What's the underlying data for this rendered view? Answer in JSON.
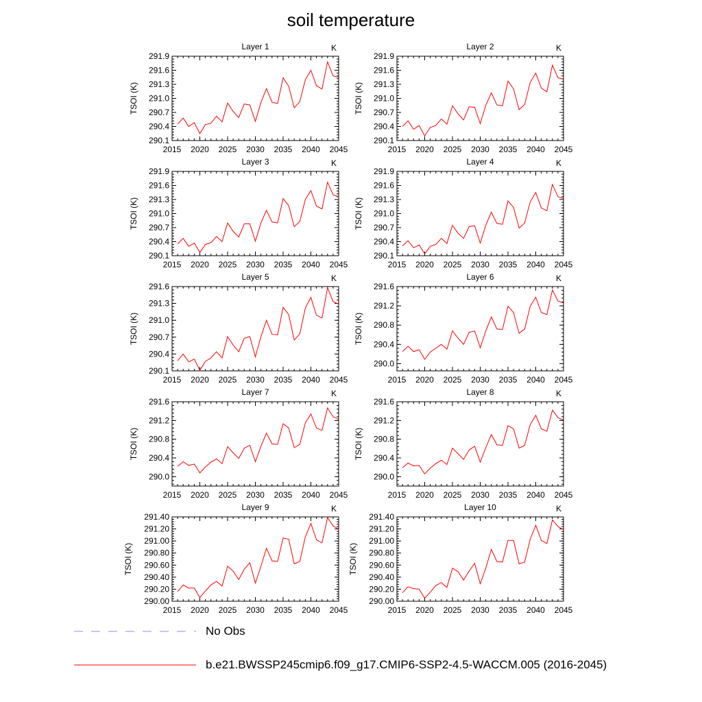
{
  "title": "soil temperature",
  "legend": {
    "obs_label": "No Obs",
    "model_label": "b.e21.BWSSP245cmip6.f09_g17.CMIP6-SSP2-4.5-WACCM.005 (2016-2045)",
    "obs_color": "#8c8cf0",
    "model_color": "#ff0000"
  },
  "chart_data": [
    {
      "type": "line",
      "title": "Layer 1",
      "units": "K",
      "ylabel": "TSOI  (K)",
      "xlim": [
        2015,
        2045
      ],
      "xticks": [
        2015,
        2020,
        2025,
        2030,
        2035,
        2040,
        2045
      ],
      "ylim": [
        290.1,
        291.9
      ],
      "yticks": [
        "290.1",
        "290.4",
        "290.7",
        "291.0",
        "291.3",
        "291.6",
        "291.9"
      ],
      "series": [
        {
          "name": "b.e21.BWSSP245cmip6.f09_g17.CMIP6-SSP2-4.5-WACCM.005",
          "x": [
            2016,
            2017,
            2018,
            2019,
            2020,
            2021,
            2022,
            2023,
            2024,
            2025,
            2026,
            2027,
            2028,
            2029,
            2030,
            2031,
            2032,
            2033,
            2034,
            2035,
            2036,
            2037,
            2038,
            2039,
            2040,
            2041,
            2042,
            2043,
            2044,
            2045
          ],
          "values": [
            290.45,
            290.58,
            290.4,
            290.48,
            290.25,
            290.44,
            290.47,
            290.62,
            290.5,
            290.9,
            290.72,
            290.59,
            290.88,
            290.86,
            290.51,
            290.91,
            291.21,
            290.92,
            290.89,
            291.44,
            291.26,
            290.8,
            290.93,
            291.4,
            291.6,
            291.27,
            291.2,
            291.78,
            291.48,
            291.45
          ]
        }
      ]
    },
    {
      "type": "line",
      "title": "Layer 2",
      "units": "K",
      "ylabel": "TSOI  (K)",
      "xlim": [
        2015,
        2045
      ],
      "xticks": [
        2015,
        2020,
        2025,
        2030,
        2035,
        2040,
        2045
      ],
      "ylim": [
        290.1,
        291.9
      ],
      "yticks": [
        "290.1",
        "290.4",
        "290.7",
        "291.0",
        "291.3",
        "291.6",
        "291.9"
      ],
      "series": [
        {
          "name": "b.e21.BWSSP245cmip6.f09_g17.CMIP6-SSP2-4.5-WACCM.005",
          "x": [
            2016,
            2017,
            2018,
            2019,
            2020,
            2021,
            2022,
            2023,
            2024,
            2025,
            2026,
            2027,
            2028,
            2029,
            2030,
            2031,
            2032,
            2033,
            2034,
            2035,
            2036,
            2037,
            2038,
            2039,
            2040,
            2041,
            2042,
            2043,
            2044,
            2045
          ],
          "values": [
            290.4,
            290.52,
            290.34,
            290.42,
            290.2,
            290.38,
            290.42,
            290.56,
            290.45,
            290.84,
            290.67,
            290.54,
            290.82,
            290.81,
            290.46,
            290.85,
            291.12,
            290.86,
            290.84,
            291.37,
            291.2,
            290.76,
            290.87,
            291.34,
            291.54,
            291.22,
            291.14,
            291.71,
            291.44,
            291.41
          ]
        }
      ]
    },
    {
      "type": "line",
      "title": "Layer 3",
      "units": "K",
      "ylabel": "TSOI  (K)",
      "xlim": [
        2015,
        2045
      ],
      "xticks": [
        2015,
        2020,
        2025,
        2030,
        2035,
        2040,
        2045
      ],
      "ylim": [
        290.1,
        291.9
      ],
      "yticks": [
        "290.1",
        "290.4",
        "290.7",
        "291.0",
        "291.3",
        "291.6",
        "291.9"
      ],
      "series": [
        {
          "name": "b.e21.BWSSP245cmip6.f09_g17.CMIP6-SSP2-4.5-WACCM.005",
          "x": [
            2016,
            2017,
            2018,
            2019,
            2020,
            2021,
            2022,
            2023,
            2024,
            2025,
            2026,
            2027,
            2028,
            2029,
            2030,
            2031,
            2032,
            2033,
            2034,
            2035,
            2036,
            2037,
            2038,
            2039,
            2040,
            2041,
            2042,
            2043,
            2044,
            2045
          ],
          "values": [
            290.35,
            290.47,
            290.3,
            290.37,
            290.17,
            290.34,
            290.38,
            290.51,
            290.4,
            290.8,
            290.62,
            290.5,
            290.78,
            290.78,
            290.41,
            290.8,
            291.07,
            290.82,
            290.8,
            291.32,
            291.17,
            290.72,
            290.83,
            291.3,
            291.49,
            291.16,
            291.1,
            291.67,
            291.4,
            291.36
          ]
        }
      ]
    },
    {
      "type": "line",
      "title": "Layer 4",
      "units": "K",
      "ylabel": "TSOI  (K)",
      "xlim": [
        2015,
        2045
      ],
      "xticks": [
        2015,
        2020,
        2025,
        2030,
        2035,
        2040,
        2045
      ],
      "ylim": [
        290.1,
        291.9
      ],
      "yticks": [
        "290.1",
        "290.4",
        "290.7",
        "291.0",
        "291.3",
        "291.6",
        "291.9"
      ],
      "series": [
        {
          "name": "b.e21.BWSSP245cmip6.f09_g17.CMIP6-SSP2-4.5-WACCM.005",
          "x": [
            2016,
            2017,
            2018,
            2019,
            2020,
            2021,
            2022,
            2023,
            2024,
            2025,
            2026,
            2027,
            2028,
            2029,
            2030,
            2031,
            2032,
            2033,
            2034,
            2035,
            2036,
            2037,
            2038,
            2039,
            2040,
            2041,
            2042,
            2043,
            2044,
            2045
          ],
          "values": [
            290.31,
            290.42,
            290.27,
            290.33,
            290.14,
            290.3,
            290.34,
            290.47,
            290.36,
            290.75,
            290.58,
            290.47,
            290.72,
            290.74,
            290.37,
            290.75,
            291.03,
            290.79,
            290.77,
            291.27,
            291.13,
            290.69,
            290.8,
            291.25,
            291.45,
            291.12,
            291.06,
            291.62,
            291.36,
            291.32
          ]
        }
      ]
    },
    {
      "type": "line",
      "title": "Layer 5",
      "units": "K",
      "ylabel": "TSOI  (K)",
      "xlim": [
        2015,
        2045
      ],
      "xticks": [
        2015,
        2020,
        2025,
        2030,
        2035,
        2040,
        2045
      ],
      "ylim": [
        290.1,
        291.6
      ],
      "yticks": [
        "290.1",
        "290.4",
        "290.7",
        "291.0",
        "291.3",
        "291.6"
      ],
      "series": [
        {
          "name": "b.e21.BWSSP245cmip6.f09_g17.CMIP6-SSP2-4.5-WACCM.005",
          "x": [
            2016,
            2017,
            2018,
            2019,
            2020,
            2021,
            2022,
            2023,
            2024,
            2025,
            2026,
            2027,
            2028,
            2029,
            2030,
            2031,
            2032,
            2033,
            2034,
            2035,
            2036,
            2037,
            2038,
            2039,
            2040,
            2041,
            2042,
            2043,
            2044,
            2045
          ],
          "values": [
            290.28,
            290.4,
            290.26,
            290.31,
            290.11,
            290.27,
            290.33,
            290.44,
            290.33,
            290.71,
            290.56,
            290.44,
            290.68,
            290.71,
            290.35,
            290.71,
            291.0,
            290.75,
            290.74,
            291.23,
            291.1,
            290.65,
            290.76,
            291.22,
            291.41,
            291.09,
            291.04,
            291.58,
            291.33,
            291.29
          ]
        }
      ]
    },
    {
      "type": "line",
      "title": "Layer 6",
      "units": "K",
      "ylabel": "TSOI  (K)",
      "xlim": [
        2015,
        2045
      ],
      "xticks": [
        2015,
        2020,
        2025,
        2030,
        2035,
        2040,
        2045
      ],
      "ylim": [
        289.85,
        291.6
      ],
      "yticks": [
        "290.0",
        "290.4",
        "290.8",
        "291.2",
        "291.6"
      ],
      "series": [
        {
          "name": "b.e21.BWSSP245cmip6.f09_g17.CMIP6-SSP2-4.5-WACCM.005",
          "x": [
            2016,
            2017,
            2018,
            2019,
            2020,
            2021,
            2022,
            2023,
            2024,
            2025,
            2026,
            2027,
            2028,
            2029,
            2030,
            2031,
            2032,
            2033,
            2034,
            2035,
            2036,
            2037,
            2038,
            2039,
            2040,
            2041,
            2042,
            2043,
            2044,
            2045
          ],
          "values": [
            290.25,
            290.36,
            290.25,
            290.29,
            290.09,
            290.24,
            290.32,
            290.4,
            290.3,
            290.68,
            290.53,
            290.4,
            290.65,
            290.68,
            290.33,
            290.68,
            290.97,
            290.72,
            290.71,
            291.19,
            291.06,
            290.63,
            290.72,
            291.19,
            291.38,
            291.06,
            291.02,
            291.53,
            291.3,
            291.26
          ]
        }
      ]
    },
    {
      "type": "line",
      "title": "Layer 7",
      "units": "K",
      "ylabel": "TSOI  (K)",
      "xlim": [
        2015,
        2045
      ],
      "xticks": [
        2015,
        2020,
        2025,
        2030,
        2035,
        2040,
        2045
      ],
      "ylim": [
        289.8,
        291.6
      ],
      "yticks": [
        "290.0",
        "290.4",
        "290.8",
        "291.2",
        "291.6"
      ],
      "series": [
        {
          "name": "b.e21.BWSSP245cmip6.f09_g17.CMIP6-SSP2-4.5-WACCM.005",
          "x": [
            2016,
            2017,
            2018,
            2019,
            2020,
            2021,
            2022,
            2023,
            2024,
            2025,
            2026,
            2027,
            2028,
            2029,
            2030,
            2031,
            2032,
            2033,
            2034,
            2035,
            2036,
            2037,
            2038,
            2039,
            2040,
            2041,
            2042,
            2043,
            2044,
            2045
          ],
          "values": [
            290.22,
            290.32,
            290.24,
            290.27,
            290.08,
            290.21,
            290.31,
            290.38,
            290.28,
            290.64,
            290.51,
            290.39,
            290.61,
            290.67,
            290.32,
            290.65,
            290.93,
            290.7,
            290.69,
            291.13,
            291.04,
            290.62,
            290.69,
            291.15,
            291.34,
            291.04,
            290.99,
            291.47,
            291.28,
            291.23
          ]
        }
      ]
    },
    {
      "type": "line",
      "title": "Layer 8",
      "units": "K",
      "ylabel": "TSOI  (K)",
      "xlim": [
        2015,
        2045
      ],
      "xticks": [
        2015,
        2020,
        2025,
        2030,
        2035,
        2040,
        2045
      ],
      "ylim": [
        289.8,
        291.6
      ],
      "yticks": [
        "290.0",
        "290.4",
        "290.8",
        "291.2",
        "291.6"
      ],
      "series": [
        {
          "name": "b.e21.BWSSP245cmip6.f09_g17.CMIP6-SSP2-4.5-WACCM.005",
          "x": [
            2016,
            2017,
            2018,
            2019,
            2020,
            2021,
            2022,
            2023,
            2024,
            2025,
            2026,
            2027,
            2028,
            2029,
            2030,
            2031,
            2032,
            2033,
            2034,
            2035,
            2036,
            2037,
            2038,
            2039,
            2040,
            2041,
            2042,
            2043,
            2044,
            2045
          ],
          "values": [
            290.19,
            290.29,
            290.23,
            290.24,
            290.06,
            290.18,
            290.28,
            290.35,
            290.26,
            290.61,
            290.49,
            290.37,
            290.57,
            290.65,
            290.31,
            290.62,
            290.9,
            290.68,
            290.67,
            291.09,
            291.02,
            290.61,
            290.67,
            291.11,
            291.31,
            291.02,
            290.97,
            291.42,
            291.26,
            291.21
          ]
        }
      ]
    },
    {
      "type": "line",
      "title": "Layer 9",
      "units": "K",
      "ylabel": "TSOI  (K)",
      "xlim": [
        2015,
        2045
      ],
      "xticks": [
        2015,
        2020,
        2025,
        2030,
        2035,
        2040,
        2045
      ],
      "ylim": [
        290.0,
        291.4
      ],
      "yticks": [
        "290.00",
        "290.20",
        "290.40",
        "290.60",
        "290.80",
        "291.00",
        "291.20",
        "291.40"
      ],
      "series": [
        {
          "name": "b.e21.BWSSP245cmip6.f09_g17.CMIP6-SSP2-4.5-WACCM.005",
          "x": [
            2016,
            2017,
            2018,
            2019,
            2020,
            2021,
            2022,
            2023,
            2024,
            2025,
            2026,
            2027,
            2028,
            2029,
            2030,
            2031,
            2032,
            2033,
            2034,
            2035,
            2036,
            2037,
            2038,
            2039,
            2040,
            2041,
            2042,
            2043,
            2044,
            2045
          ],
          "values": [
            290.16,
            290.27,
            290.22,
            290.22,
            290.06,
            290.17,
            290.27,
            290.33,
            290.25,
            290.58,
            290.5,
            290.36,
            290.53,
            290.64,
            290.3,
            290.58,
            290.88,
            290.67,
            290.66,
            291.05,
            291.03,
            290.62,
            290.66,
            291.07,
            291.29,
            291.02,
            290.97,
            291.39,
            291.25,
            291.2
          ]
        }
      ]
    },
    {
      "type": "line",
      "title": "Layer 10",
      "units": "K",
      "ylabel": "TSOI  (K)",
      "xlim": [
        2015,
        2045
      ],
      "xticks": [
        2015,
        2020,
        2025,
        2030,
        2035,
        2040,
        2045
      ],
      "ylim": [
        290.0,
        291.4
      ],
      "yticks": [
        "290.00",
        "290.20",
        "290.40",
        "290.60",
        "290.80",
        "291.00",
        "291.20",
        "291.40"
      ],
      "series": [
        {
          "name": "b.e21.BWSSP245cmip6.f09_g17.CMIP6-SSP2-4.5-WACCM.005",
          "x": [
            2016,
            2017,
            2018,
            2019,
            2020,
            2021,
            2022,
            2023,
            2024,
            2025,
            2026,
            2027,
            2028,
            2029,
            2030,
            2031,
            2032,
            2033,
            2034,
            2035,
            2036,
            2037,
            2038,
            2039,
            2040,
            2041,
            2042,
            2043,
            2044,
            2045
          ],
          "values": [
            290.14,
            290.24,
            290.21,
            290.2,
            290.05,
            290.15,
            290.26,
            290.31,
            290.23,
            290.55,
            290.49,
            290.35,
            290.5,
            290.63,
            290.29,
            290.55,
            290.86,
            290.66,
            290.65,
            291.01,
            291.01,
            290.62,
            290.65,
            291.03,
            291.26,
            291.01,
            290.96,
            291.35,
            291.24,
            291.19
          ]
        }
      ]
    }
  ]
}
